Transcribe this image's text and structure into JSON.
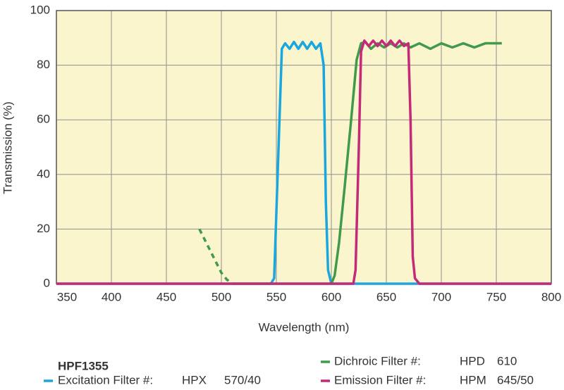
{
  "chart_data": {
    "type": "line",
    "title": "HPF1355",
    "x_label": "Wavelength (nm)",
    "y_label": "Transmission (%)",
    "xlim": [
      350,
      800
    ],
    "xticks": [
      350,
      400,
      450,
      500,
      550,
      600,
      650,
      700,
      750,
      800
    ],
    "ylim": [
      0,
      100
    ],
    "yticks": [
      0,
      20,
      40,
      60,
      80,
      100
    ],
    "grid": true,
    "background": "#faf5cc",
    "series": [
      {
        "name": "Excitation Filter #:",
        "product": "HPX",
        "spec": "570/40",
        "color": "#1aa6df",
        "x": [
          350,
          545,
          548,
          552,
          555,
          558,
          562,
          566,
          570,
          574,
          578,
          582,
          586,
          590,
          593,
          595,
          597,
          600,
          800
        ],
        "values": [
          0,
          0,
          2,
          50,
          86,
          88,
          86,
          88.5,
          86,
          88.5,
          86,
          88.5,
          86,
          88,
          80,
          30,
          5,
          0,
          0
        ]
      },
      {
        "name": "Dichroic Filter #:",
        "product": "HPD",
        "spec": "610",
        "color": "#3f9a4b",
        "dashed_x": [
          480,
          510
        ],
        "x": [
          480,
          490,
          500,
          505,
          510,
          600,
          603,
          607,
          612,
          618,
          623,
          627,
          631,
          636,
          642,
          648,
          654,
          660,
          666,
          672,
          680,
          690,
          700,
          710,
          720,
          730,
          740,
          755
        ],
        "values": [
          20,
          12,
          4,
          1.5,
          0,
          0,
          3,
          15,
          35,
          60,
          82,
          88,
          88.5,
          86,
          88,
          86.5,
          88,
          86.5,
          88,
          86.5,
          88,
          86,
          88,
          86.5,
          88,
          86.5,
          88,
          88
        ]
      },
      {
        "name": "Emission Filter #:",
        "product": "HPM",
        "spec": "645/50",
        "color": "#c6287a",
        "x": [
          350,
          620,
          622,
          625,
          627,
          630,
          634,
          638,
          642,
          646,
          650,
          654,
          658,
          662,
          666,
          670,
          672,
          674,
          676,
          680,
          800
        ],
        "values": [
          0,
          0,
          5,
          50,
          85,
          89,
          87,
          89,
          87,
          89,
          87,
          89,
          87,
          89,
          87,
          88,
          60,
          10,
          2,
          0,
          0
        ]
      }
    ]
  }
}
